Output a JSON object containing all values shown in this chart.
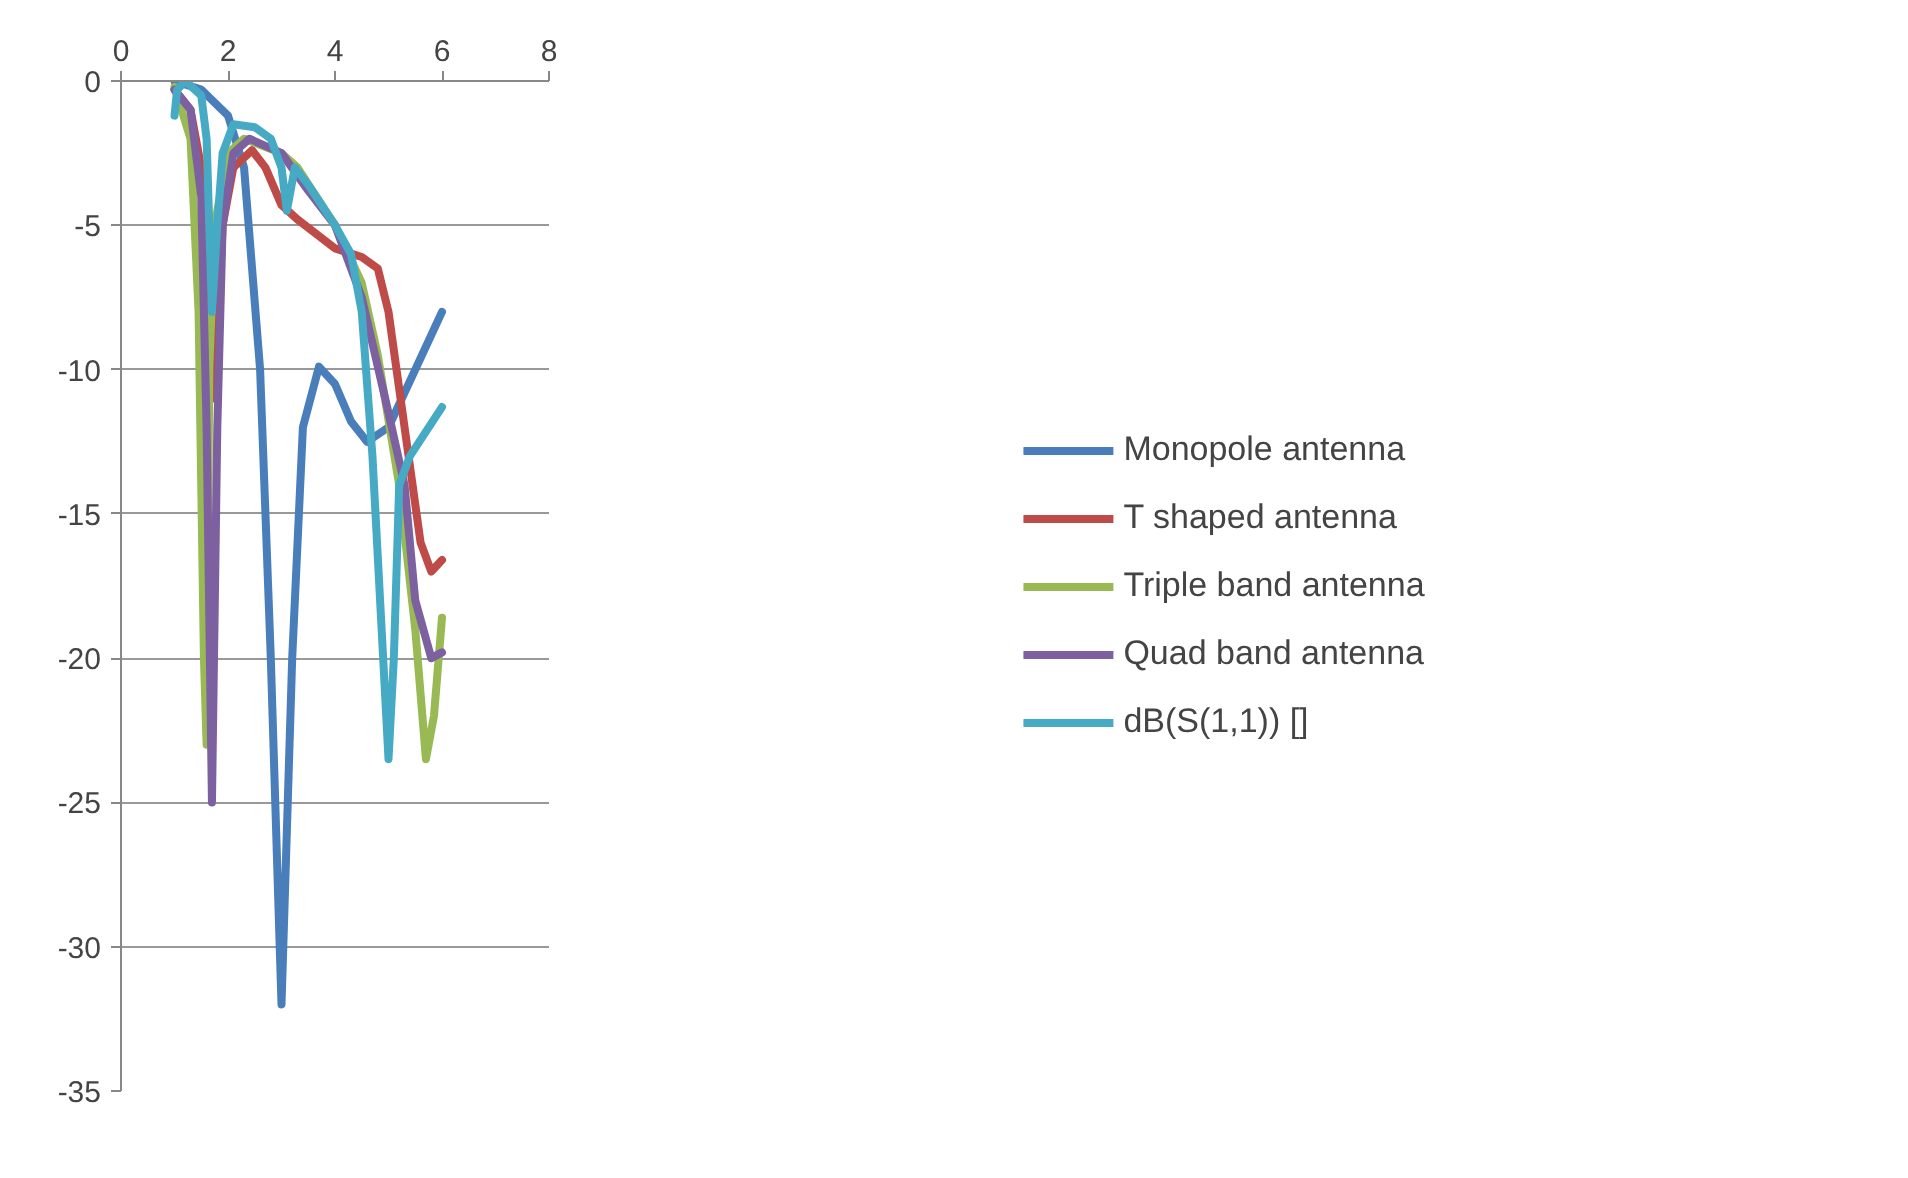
{
  "chart_data": {
    "type": "line",
    "xlim": [
      0,
      8
    ],
    "xticks": [
      0,
      2,
      4,
      6,
      8
    ],
    "ylim": [
      -35,
      0
    ],
    "yticks": [
      -35,
      -30,
      -25,
      -20,
      -15,
      -10,
      -5,
      0
    ],
    "grid": "y",
    "legend": "right",
    "marker": "none",
    "line_style": "solid",
    "series": [
      {
        "name": "Monopole antenna",
        "color": "#4a7ebb",
        "x": [
          1,
          1.5,
          2,
          2.3,
          2.6,
          2.8,
          3,
          3.2,
          3.4,
          3.7,
          4,
          4.3,
          4.6,
          5,
          5.5,
          6
        ],
        "values": [
          0,
          -0.3,
          -1.2,
          -3,
          -10,
          -20,
          -32,
          -20,
          -12,
          -9.9,
          -10.5,
          -11.8,
          -12.5,
          -12,
          -10,
          -8
        ]
      },
      {
        "name": "T shaped antenna",
        "color": "#be4b48",
        "x": [
          1,
          1.3,
          1.5,
          1.65,
          1.75,
          1.9,
          2.1,
          2.45,
          2.7,
          3,
          3.3,
          4,
          4.5,
          4.8,
          5,
          5.3,
          5.6,
          5.8,
          6
        ],
        "values": [
          -0.3,
          -1,
          -3,
          -8,
          -11,
          -5,
          -3,
          -2.4,
          -3,
          -4.3,
          -4.8,
          -5.8,
          -6.1,
          -6.5,
          -8,
          -12,
          -16,
          -17,
          -16.6
        ]
      },
      {
        "name": "Triple band antenna",
        "color": "#98b954",
        "x": [
          1,
          1.3,
          1.45,
          1.55,
          1.6,
          1.65,
          1.75,
          2,
          2.3,
          3,
          3.3,
          4,
          4.5,
          4.8,
          5.2,
          5.5,
          5.7,
          5.85,
          6
        ],
        "values": [
          -0.2,
          -2,
          -8,
          -20,
          -23,
          -10,
          -5,
          -2.5,
          -2,
          -2.5,
          -3,
          -5,
          -7,
          -9.5,
          -14,
          -19,
          -23.5,
          -22,
          -18.6
        ]
      },
      {
        "name": "Quad band antenna",
        "color": "#7d60a0",
        "x": [
          1,
          1.3,
          1.5,
          1.6,
          1.7,
          1.8,
          1.9,
          2.1,
          2.4,
          3,
          3.5,
          4,
          4.5,
          5,
          5.3,
          5.5,
          5.8,
          6
        ],
        "values": [
          -0.3,
          -1,
          -4,
          -12,
          -25,
          -12,
          -5,
          -2.5,
          -2,
          -2.5,
          -3.8,
          -5,
          -7.5,
          -11.5,
          -14,
          -18,
          -20,
          -19.8
        ]
      },
      {
        "name": "dB(S(1,1)) []",
        "color": "#46aac5",
        "x": [
          1,
          1.05,
          1.2,
          1.5,
          1.6,
          1.7,
          1.8,
          1.9,
          2.1,
          2.5,
          2.8,
          3,
          3.1,
          3.25,
          3.5,
          4,
          4.3,
          4.5,
          4.7,
          4.9,
          5,
          5.1,
          5.2,
          5.4,
          6
        ],
        "values": [
          -1.2,
          -0.3,
          0,
          -0.5,
          -2,
          -8,
          -5,
          -2.5,
          -1.5,
          -1.6,
          -2,
          -3,
          -4.5,
          -3,
          -3.6,
          -5,
          -6,
          -8,
          -13,
          -20,
          -23.5,
          -20,
          -14,
          -13,
          -11.3
        ]
      }
    ]
  }
}
